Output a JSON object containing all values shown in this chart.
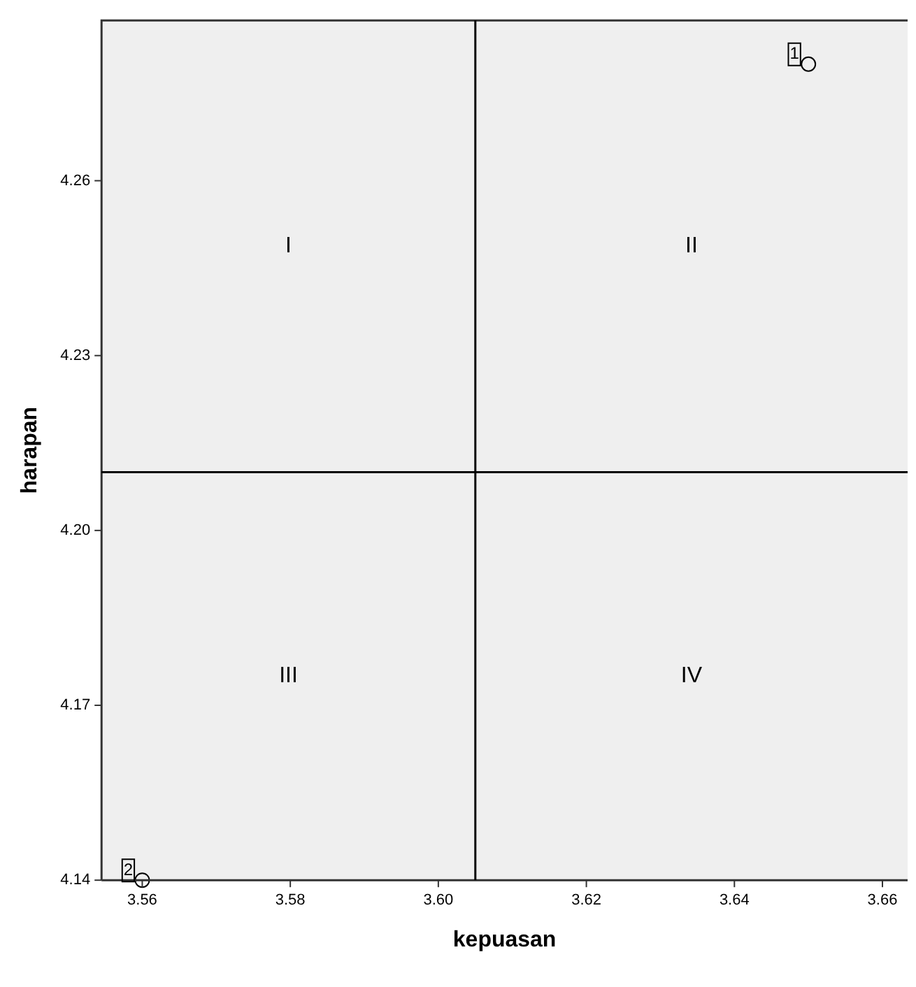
{
  "chart_data": {
    "type": "scatter",
    "xlabel": "kepuasan",
    "ylabel": "harapan",
    "series": [
      {
        "color": "#000000",
        "x": [
          3.65,
          3.56
        ],
        "values": [
          4.28,
          4.14
        ]
      }
    ],
    "xlim": [
      3.5545,
      3.6634
    ],
    "xticks": [
      3.56,
      3.58,
      {
        "value": 3.6,
        "label": "3.60"
      },
      3.62,
      3.64,
      3.66
    ],
    "ylim": [
      4.14,
      4.2875
    ],
    "yticks": [
      4.14,
      4.17,
      {
        "value": 4.2,
        "label": "4.20"
      },
      4.23,
      4.26
    ],
    "ref_lines": [
      {
        "axis": "x",
        "value": 3.605,
        "color": "#000000"
      },
      {
        "axis": "y",
        "value": 4.21,
        "color": "#000000"
      }
    ],
    "annotations": [
      {
        "text": "1",
        "x": 3.65,
        "y": 4.28
      },
      {
        "text": "2",
        "x": 3.56,
        "y": 4.14
      },
      "I",
      "II",
      "III",
      "IV"
    ],
    "grid": false,
    "legend": false,
    "marker": "circle"
  }
}
